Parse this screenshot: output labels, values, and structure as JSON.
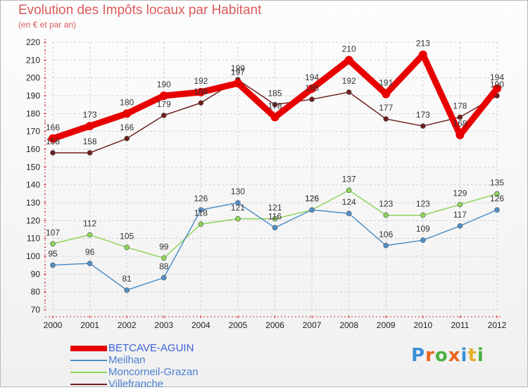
{
  "chart_data": {
    "type": "line",
    "title": "Evolution des Impôts locaux par Habitant",
    "subtitle": "(en € et par an)",
    "xlabel": "",
    "ylabel": "",
    "ylim": [
      70,
      220
    ],
    "yticks": [
      70,
      80,
      90,
      100,
      110,
      120,
      130,
      140,
      150,
      160,
      170,
      180,
      190,
      200,
      210,
      220
    ],
    "x": [
      "2000",
      "2001",
      "2002",
      "2003",
      "2004",
      "2005",
      "2006",
      "2007",
      "2008",
      "2009",
      "2010",
      "2011",
      "2012"
    ],
    "grid": true,
    "legend_position": "bottom-left",
    "series": [
      {
        "name": "BETCAVE-AGUIN",
        "color": "#e80000",
        "values": [
          166,
          173,
          180,
          190,
          192,
          197,
          178,
          194,
          210,
          191,
          213,
          168,
          194
        ]
      },
      {
        "name": "Meilhan",
        "color": "#4f8fc7",
        "values": [
          95,
          96,
          81,
          88,
          126,
          130,
          116,
          126,
          124,
          106,
          109,
          117,
          126
        ]
      },
      {
        "name": "Moncorneil-Grazan",
        "color": "#8ed45a",
        "values": [
          107,
          112,
          105,
          99,
          118,
          121,
          121,
          126,
          137,
          123,
          123,
          129,
          135
        ]
      },
      {
        "name": "Villefranche",
        "color": "#6e1e1e",
        "values": [
          158,
          158,
          166,
          179,
          186,
          199,
          185,
          188,
          192,
          177,
          173,
          178,
          190
        ]
      }
    ]
  },
  "logo": {
    "letters": [
      "P",
      "r",
      "o",
      "x",
      "i",
      "t",
      "i"
    ],
    "colors": [
      "#3c8fd8",
      "#e8641c",
      "#4bb043",
      "#e8641c",
      "#3c8fd8",
      "#e0b02a",
      "#4bb043"
    ]
  }
}
